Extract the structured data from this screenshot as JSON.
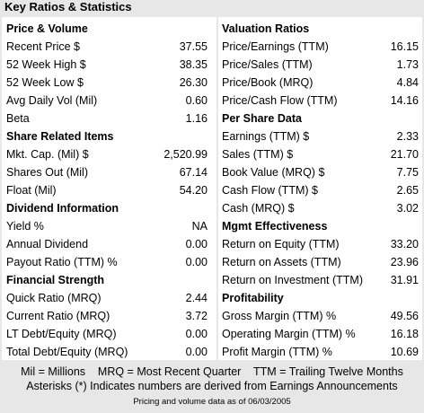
{
  "title": "Key Ratios & Statistics",
  "left_sections": [
    {
      "heading": "Price & Volume",
      "rows": [
        {
          "label": "Recent Price $",
          "value": "37.55"
        },
        {
          "label": "52 Week High $",
          "value": "38.35"
        },
        {
          "label": "52 Week Low $",
          "value": "26.30"
        },
        {
          "label": "Avg Daily Vol (Mil)",
          "value": "0.60"
        },
        {
          "label": "Beta",
          "value": "1.16"
        }
      ]
    },
    {
      "heading": "Share Related Items",
      "rows": [
        {
          "label": "Mkt. Cap. (Mil) $",
          "value": "2,520.99"
        },
        {
          "label": "Shares Out (Mil)",
          "value": "67.14"
        },
        {
          "label": "Float (Mil)",
          "value": "54.20"
        }
      ]
    },
    {
      "heading": "Dividend Information",
      "rows": [
        {
          "label": "Yield %",
          "value": "NA"
        },
        {
          "label": "Annual Dividend",
          "value": "0.00"
        },
        {
          "label": "Payout Ratio (TTM) %",
          "value": "0.00"
        }
      ]
    },
    {
      "heading": "Financial Strength",
      "rows": [
        {
          "label": "Quick Ratio (MRQ)",
          "value": "2.44"
        },
        {
          "label": "Current Ratio (MRQ)",
          "value": "3.72"
        },
        {
          "label": "LT Debt/Equity (MRQ)",
          "value": "0.00"
        },
        {
          "label": "Total Debt/Equity (MRQ)",
          "value": "0.00"
        }
      ]
    }
  ],
  "right_sections": [
    {
      "heading": "Valuation Ratios",
      "rows": [
        {
          "label": "Price/Earnings (TTM)",
          "value": "16.15"
        },
        {
          "label": "Price/Sales (TTM)",
          "value": "1.73"
        },
        {
          "label": "Price/Book (MRQ)",
          "value": "4.84"
        },
        {
          "label": "Price/Cash Flow (TTM)",
          "value": "14.16"
        }
      ]
    },
    {
      "heading": "Per Share Data",
      "rows": [
        {
          "label": "Earnings (TTM) $",
          "value": "2.33"
        },
        {
          "label": "Sales (TTM) $",
          "value": "21.70"
        },
        {
          "label": "Book Value (MRQ) $",
          "value": "7.75"
        },
        {
          "label": "Cash Flow (TTM) $",
          "value": "2.65"
        },
        {
          "label": "Cash (MRQ) $",
          "value": "3.02"
        }
      ]
    },
    {
      "heading": "Mgmt Effectiveness",
      "rows": [
        {
          "label": "Return on Equity (TTM)",
          "value": "33.20"
        },
        {
          "label": "Return on Assets (TTM)",
          "value": "23.96"
        },
        {
          "label": "Return on Investment (TTM)",
          "value": "31.91"
        }
      ]
    },
    {
      "heading": "Profitability",
      "rows": [
        {
          "label": "Gross Margin (TTM) %",
          "value": "49.56"
        },
        {
          "label": "Operating Margin (TTM) %",
          "value": "16.18"
        },
        {
          "label": "Profit Margin (TTM) %",
          "value": "10.69"
        }
      ]
    }
  ],
  "footer": {
    "legend": "Mil = Millions    MRQ = Most Recent Quarter    TTM = Trailing Twelve Months",
    "asterisk_note": "Asterisks (*) Indicates numbers are derived from Earnings Announcements",
    "as_of": "Pricing and volume data as of 06/03/2005"
  },
  "colors": {
    "background": "#e7e7e7",
    "panel": "#ffffff"
  }
}
